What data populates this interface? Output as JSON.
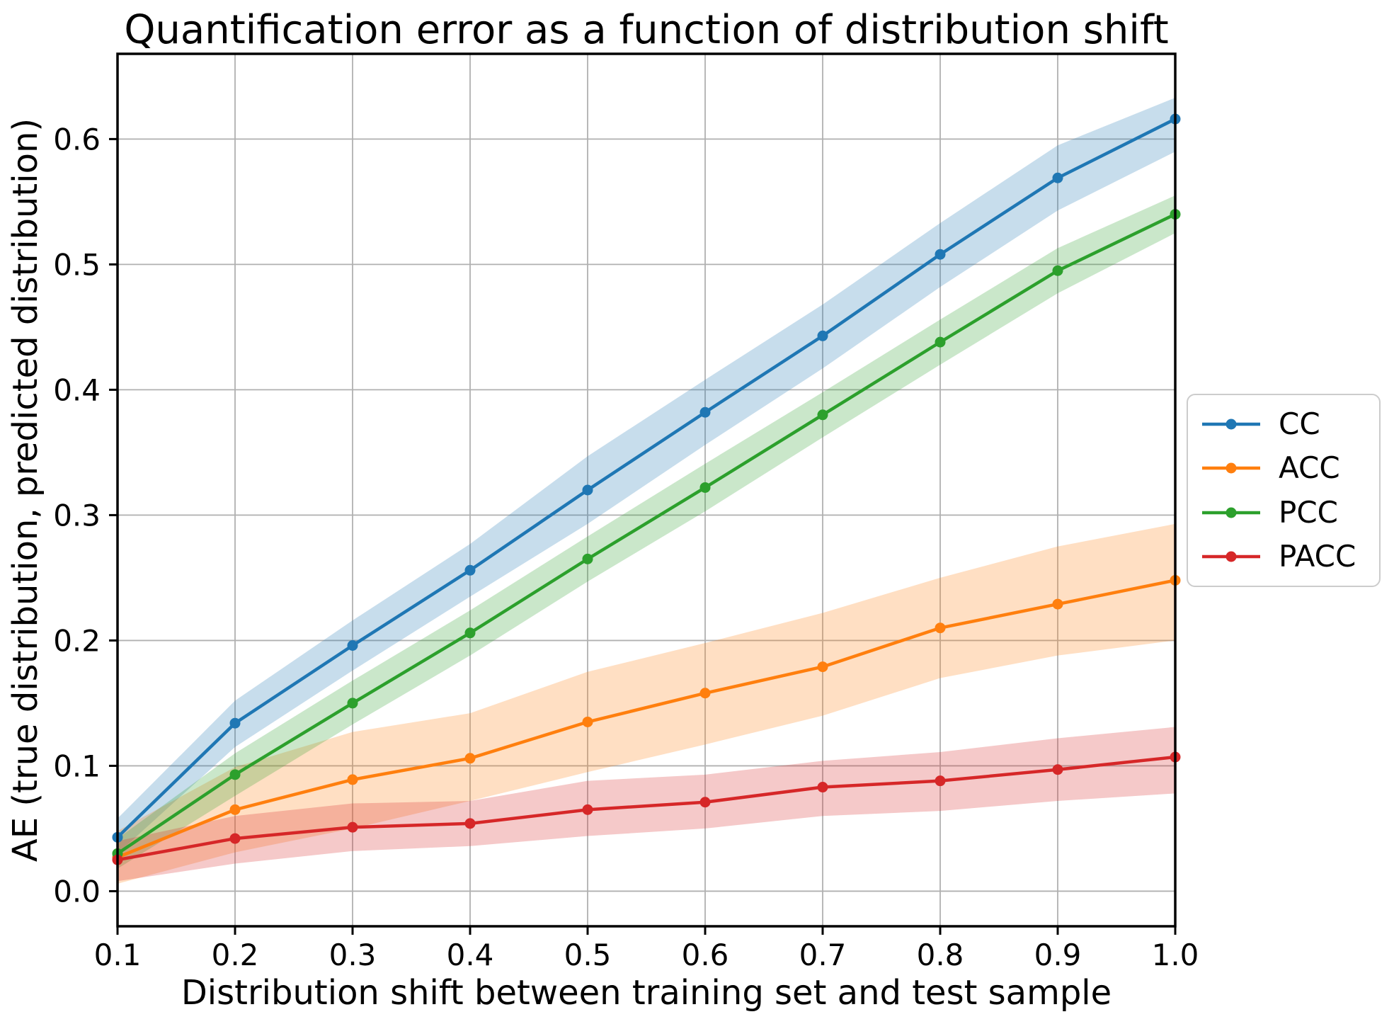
{
  "chart_data": {
    "type": "line",
    "title": "Quantification error as a function of distribution shift",
    "xlabel": "Distribution shift between training set and test sample",
    "ylabel": "AE (true distribution, predicted distribution)",
    "x": [
      0.1,
      0.2,
      0.3,
      0.4,
      0.5,
      0.6,
      0.7,
      0.8,
      0.9,
      1.0
    ],
    "xlim": [
      0.1,
      1.0
    ],
    "ylim": [
      -0.028,
      0.668
    ],
    "xticks": {
      "values": [
        0.1,
        0.2,
        0.3,
        0.4,
        0.5,
        0.6,
        0.7,
        0.8,
        0.9,
        1.0
      ],
      "labels": [
        "0.1",
        "0.2",
        "0.3",
        "0.4",
        "0.5",
        "0.6",
        "0.7",
        "0.8",
        "0.9",
        "1.0"
      ]
    },
    "yticks": {
      "values": [
        0.0,
        0.1,
        0.2,
        0.3,
        0.4,
        0.5,
        0.6
      ],
      "labels": [
        "0.0",
        "0.1",
        "0.2",
        "0.3",
        "0.4",
        "0.5",
        "0.6"
      ]
    },
    "grid": true,
    "grid_color": "#b0b0b0",
    "band_alpha": 0.25,
    "marker": "circle",
    "legend": {
      "position": "right-outside",
      "entries": [
        "CC",
        "ACC",
        "PCC",
        "PACC"
      ]
    },
    "series": [
      {
        "name": "CC",
        "color": "#1f77b4",
        "values": [
          0.043,
          0.134,
          0.196,
          0.256,
          0.32,
          0.382,
          0.443,
          0.508,
          0.569,
          0.616
        ],
        "band_lo": [
          0.03,
          0.115,
          0.176,
          0.235,
          0.293,
          0.356,
          0.417,
          0.482,
          0.543,
          0.59
        ],
        "band_hi": [
          0.058,
          0.152,
          0.216,
          0.277,
          0.347,
          0.408,
          0.468,
          0.533,
          0.595,
          0.633
        ]
      },
      {
        "name": "ACC",
        "color": "#ff7f0e",
        "values": [
          0.027,
          0.065,
          0.089,
          0.106,
          0.135,
          0.158,
          0.179,
          0.21,
          0.229,
          0.248
        ],
        "band_lo": [
          0.006,
          0.031,
          0.05,
          0.072,
          0.095,
          0.117,
          0.14,
          0.17,
          0.188,
          0.2
        ],
        "band_hi": [
          0.048,
          0.099,
          0.127,
          0.142,
          0.175,
          0.198,
          0.222,
          0.25,
          0.275,
          0.293
        ]
      },
      {
        "name": "PCC",
        "color": "#2ca02c",
        "values": [
          0.03,
          0.093,
          0.15,
          0.206,
          0.265,
          0.322,
          0.38,
          0.438,
          0.495,
          0.54
        ],
        "band_lo": [
          0.018,
          0.076,
          0.133,
          0.188,
          0.247,
          0.303,
          0.362,
          0.42,
          0.477,
          0.525
        ],
        "band_hi": [
          0.042,
          0.11,
          0.168,
          0.224,
          0.283,
          0.341,
          0.398,
          0.456,
          0.513,
          0.555
        ]
      },
      {
        "name": "PACC",
        "color": "#d62728",
        "values": [
          0.025,
          0.042,
          0.051,
          0.054,
          0.065,
          0.071,
          0.083,
          0.088,
          0.097,
          0.107
        ],
        "band_lo": [
          0.008,
          0.022,
          0.032,
          0.036,
          0.044,
          0.05,
          0.06,
          0.064,
          0.072,
          0.078
        ],
        "band_hi": [
          0.04,
          0.06,
          0.07,
          0.072,
          0.088,
          0.093,
          0.104,
          0.111,
          0.122,
          0.131
        ]
      }
    ]
  }
}
